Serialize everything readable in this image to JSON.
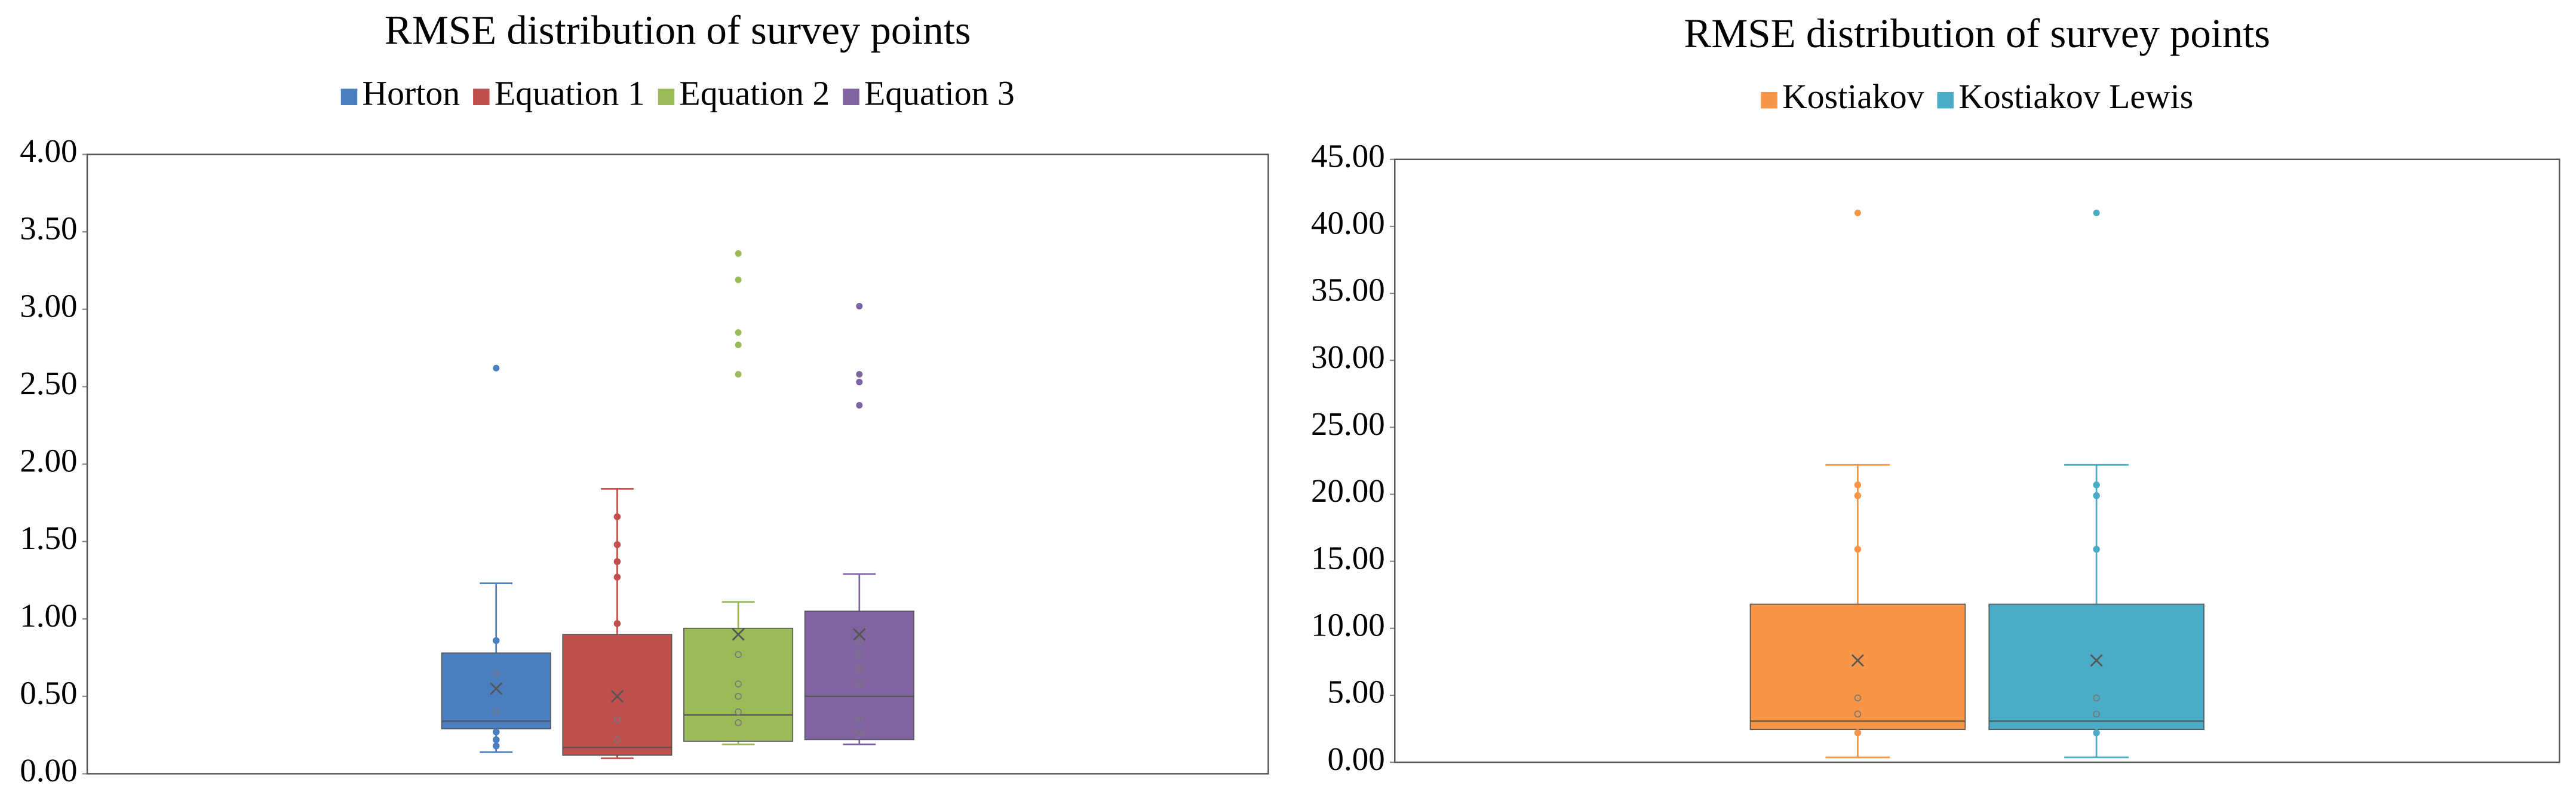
{
  "chart_data": [
    {
      "type": "box",
      "title": "RMSE distribution of survey points",
      "ylim": [
        0,
        4
      ],
      "yticks": [
        {
          "value": 0,
          "label": "0.00"
        },
        {
          "value": 0.5,
          "label": "0.50"
        },
        {
          "value": 1,
          "label": "1.00"
        },
        {
          "value": 1.5,
          "label": "1.50"
        },
        {
          "value": 2,
          "label": "2.00"
        },
        {
          "value": 2.5,
          "label": "2.50"
        },
        {
          "value": 3,
          "label": "3.00"
        },
        {
          "value": 3.5,
          "label": "3.50"
        },
        {
          "value": 4,
          "label": "4.00"
        }
      ],
      "series": [
        {
          "name": "Horton",
          "color": "#4a7ebf",
          "whisker_low": 0.14,
          "q1": 0.29,
          "median": 0.34,
          "q3": 0.78,
          "whisker_high": 1.23,
          "mean": 0.55,
          "points": [
            0.86,
            0.65,
            0.4,
            0.27,
            0.22,
            0.18
          ],
          "outliers": [
            2.62
          ]
        },
        {
          "name": "Equation 1",
          "color": "#c0504d",
          "whisker_low": 0.1,
          "q1": 0.12,
          "median": 0.17,
          "q3": 0.9,
          "whisker_high": 1.84,
          "mean": 0.5,
          "points": [
            1.66,
            1.48,
            1.37,
            1.27,
            0.97,
            0.35,
            0.22
          ]
        },
        {
          "name": "Equation 2",
          "color": "#9bbb59",
          "whisker_low": 0.19,
          "q1": 0.21,
          "median": 0.38,
          "q3": 0.94,
          "whisker_high": 1.11,
          "mean": 0.9,
          "points": [
            0.77,
            0.58,
            0.5,
            0.4,
            0.33
          ],
          "outliers": [
            3.36,
            3.19,
            2.85,
            2.77,
            2.58
          ]
        },
        {
          "name": "Equation 3",
          "color": "#8064a2",
          "whisker_low": 0.19,
          "q1": 0.22,
          "median": 0.5,
          "q3": 1.05,
          "whisker_high": 1.29,
          "mean": 0.9,
          "points": [
            0.85,
            0.77,
            0.68,
            0.58,
            0.35,
            0.27
          ],
          "outliers": [
            3.02,
            2.58,
            2.53,
            2.38
          ]
        }
      ]
    },
    {
      "type": "box",
      "title": "RMSE distribution of survey points",
      "ylim": [
        0,
        45
      ],
      "yticks": [
        {
          "value": 0,
          "label": "0.00"
        },
        {
          "value": 5,
          "label": "5.00"
        },
        {
          "value": 10,
          "label": "10.00"
        },
        {
          "value": 15,
          "label": "15.00"
        },
        {
          "value": 20,
          "label": "20.00"
        },
        {
          "value": 25,
          "label": "25.00"
        },
        {
          "value": 30,
          "label": "30.00"
        },
        {
          "value": 35,
          "label": "35.00"
        },
        {
          "value": 40,
          "label": "40.00"
        },
        {
          "value": 45,
          "label": "45.00"
        }
      ],
      "series": [
        {
          "name": "Kostiakov",
          "color": "#f79646",
          "whisker_low": 0.37,
          "q1": 2.45,
          "median": 3.07,
          "q3": 11.8,
          "whisker_high": 22.2,
          "mean": 7.6,
          "points": [
            20.7,
            19.9,
            15.9,
            4.8,
            3.6,
            2.2
          ],
          "outliers": [
            41
          ]
        },
        {
          "name": "Kostiakov Lewis",
          "color": "#4bacc6",
          "whisker_low": 0.37,
          "q1": 2.45,
          "median": 3.07,
          "q3": 11.8,
          "whisker_high": 22.2,
          "mean": 7.6,
          "points": [
            20.7,
            19.9,
            15.9,
            4.8,
            3.6,
            2.2
          ],
          "outliers": [
            41
          ]
        }
      ]
    }
  ]
}
